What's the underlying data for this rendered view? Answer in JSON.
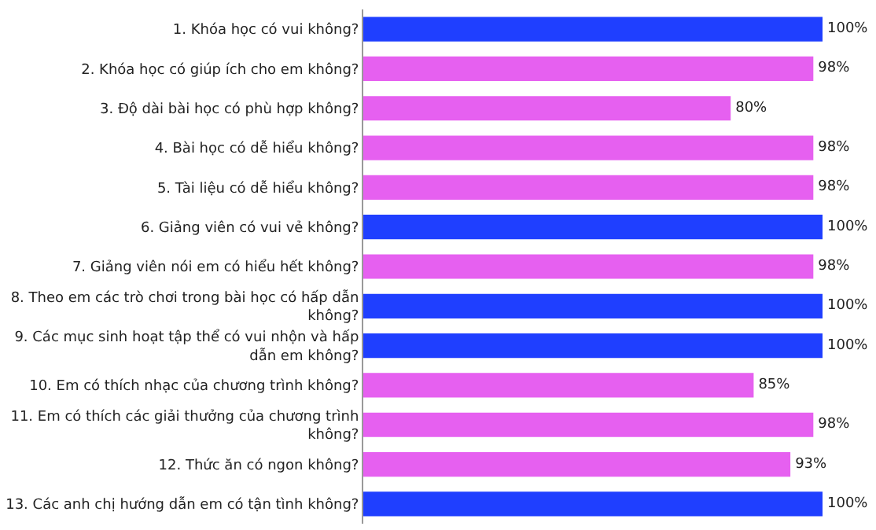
{
  "chart_data": {
    "type": "bar",
    "orientation": "horizontal",
    "categories": [
      "1. Khóa học có vui không?",
      "2. Khóa học có giúp ích cho em không?",
      "3. Độ dài bài học có phù hợp không?",
      "4. Bài học có dễ hiểu không?",
      "5. Tài liệu có dễ hiểu không?",
      "6. Giảng viên có vui vẻ không?",
      "7. Giảng viên nói em có hiểu hết không?",
      "8. Theo em các trò chơi trong bài học có hấp dẫn\nkhông?",
      "9. Các mục sinh hoạt tập thể có vui nhộn và hấp\ndẫn em không?",
      "10. Em có thích nhạc của chương trình không?",
      "11. Em có thích các giải thưởng của chương trình\nkhông?",
      "12. Thức ăn có ngon không?",
      "13. Các anh chị hướng dẫn em có tận tình không?"
    ],
    "values": [
      100,
      98,
      80,
      98,
      98,
      100,
      98,
      100,
      100,
      85,
      98,
      93,
      100
    ],
    "value_labels": [
      "100%",
      "98%",
      "80%",
      "98%",
      "98%",
      "100%",
      "98%",
      "100%",
      "100%",
      "85%",
      "98%",
      "93%",
      "100%"
    ],
    "colors": [
      "#1f3fff",
      "#e660f0",
      "#e660f0",
      "#e660f0",
      "#e660f0",
      "#1f3fff",
      "#e660f0",
      "#1f3fff",
      "#1f3fff",
      "#e660f0",
      "#e660f0",
      "#e660f0",
      "#1f3fff"
    ]
  }
}
